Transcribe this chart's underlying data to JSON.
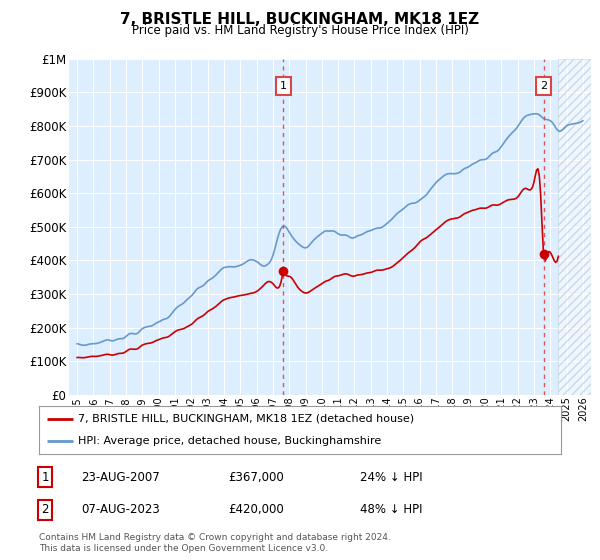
{
  "title": "7, BRISTLE HILL, BUCKINGHAM, MK18 1EZ",
  "subtitle": "Price paid vs. HM Land Registry's House Price Index (HPI)",
  "ylim": [
    0,
    1000000
  ],
  "yticks": [
    0,
    100000,
    200000,
    300000,
    400000,
    500000,
    600000,
    700000,
    800000,
    900000,
    1000000
  ],
  "hpi_color": "#6699cc",
  "price_color": "#cc0000",
  "dashed_line_color": "#dd4444",
  "background_color": "#ddeeff",
  "grid_color": "#ffffff",
  "marker1_date": "23-AUG-2007",
  "marker1_price": "£367,000",
  "marker1_hpi_pct": "24% ↓ HPI",
  "marker2_date": "07-AUG-2023",
  "marker2_price": "£420,000",
  "marker2_hpi_pct": "48% ↓ HPI",
  "legend_label1": "7, BRISTLE HILL, BUCKINGHAM, MK18 1EZ (detached house)",
  "legend_label2": "HPI: Average price, detached house, Buckinghamshire",
  "footer": "Contains HM Land Registry data © Crown copyright and database right 2024.\nThis data is licensed under the Open Government Licence v3.0.",
  "sale1_x": 2007.64,
  "sale1_y": 367000,
  "sale2_x": 2023.6,
  "sale2_y": 420000,
  "xlim_min": 1994.5,
  "xlim_max": 2026.5,
  "hatch_start": 2024.5
}
